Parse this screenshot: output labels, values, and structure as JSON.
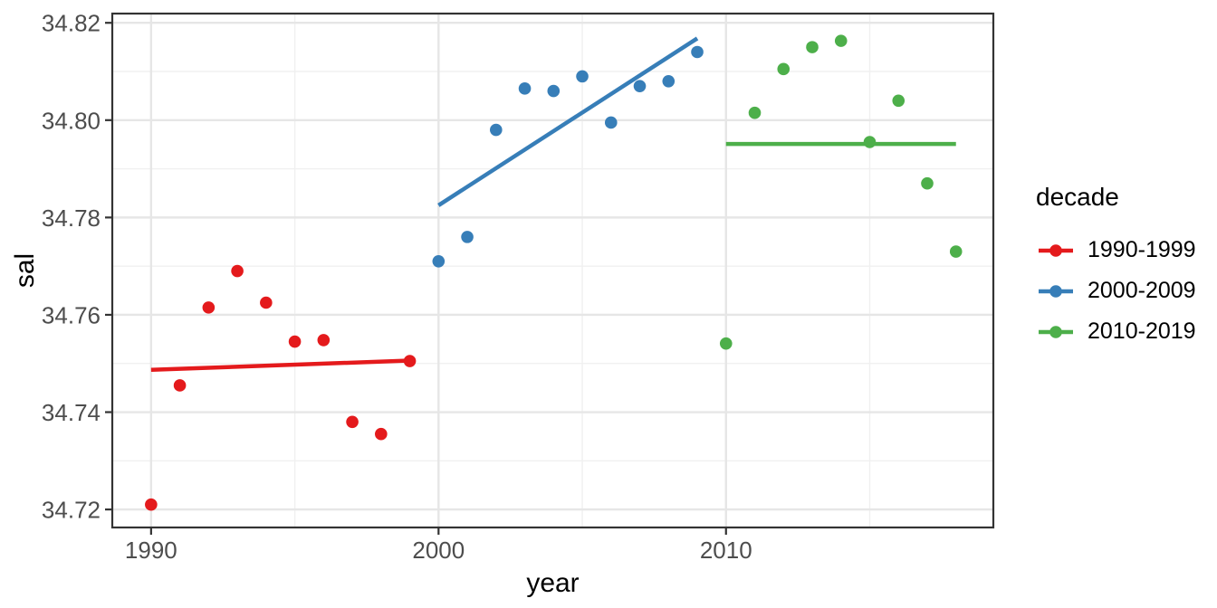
{
  "chart_data": {
    "type": "scatter",
    "title": "",
    "xlabel": "year",
    "ylabel": "sal",
    "xlim": [
      1988.65,
      2019.3
    ],
    "ylim": [
      34.7163,
      34.8219
    ],
    "x_ticks": [
      {
        "value": 1990,
        "label": "1990"
      },
      {
        "value": 2000,
        "label": "2000"
      },
      {
        "value": 2010,
        "label": "2010"
      }
    ],
    "x_minor_ticks": [
      1995,
      2005,
      2015
    ],
    "y_ticks": [
      {
        "value": 34.72,
        "label": "34.72"
      },
      {
        "value": 34.74,
        "label": "34.74"
      },
      {
        "value": 34.76,
        "label": "34.76"
      },
      {
        "value": 34.78,
        "label": "34.78"
      },
      {
        "value": 34.8,
        "label": "34.80"
      },
      {
        "value": 34.82,
        "label": "34.82"
      }
    ],
    "y_minor_ticks": [
      34.73,
      34.75,
      34.77,
      34.79,
      34.81
    ],
    "grid": true,
    "legend": {
      "title": "decade",
      "position": "right"
    },
    "series": [
      {
        "name": "1990-1999",
        "color": "#e41a1c",
        "x": [
          1990,
          1991,
          1992,
          1993,
          1994,
          1995,
          1996,
          1997,
          1998,
          1999
        ],
        "y": [
          34.721,
          34.7455,
          34.7615,
          34.769,
          34.7625,
          34.7545,
          34.7548,
          34.738,
          34.7355,
          34.7505
        ],
        "trend": {
          "x": [
            1990,
            1999
          ],
          "y": [
            34.7487,
            34.7506
          ]
        }
      },
      {
        "name": "2000-2009",
        "color": "#377eb8",
        "x": [
          2000,
          2001,
          2002,
          2003,
          2004,
          2005,
          2006,
          2007,
          2008,
          2009
        ],
        "y": [
          34.771,
          34.776,
          34.798,
          34.8065,
          34.806,
          34.809,
          34.7995,
          34.807,
          34.808,
          34.814
        ],
        "trend": {
          "x": [
            2000,
            2009
          ],
          "y": [
            34.7825,
            34.8168
          ]
        }
      },
      {
        "name": "2010-2019",
        "color": "#4daf4a",
        "x": [
          2010,
          2011,
          2012,
          2013,
          2014,
          2015,
          2016,
          2017,
          2018
        ],
        "y": [
          34.7541,
          34.8015,
          34.8105,
          34.815,
          34.8163,
          34.7955,
          34.804,
          34.787,
          34.773
        ],
        "trend": {
          "x": [
            2010,
            2018
          ],
          "y": [
            34.7951,
            34.7951
          ]
        }
      }
    ],
    "theme": {
      "background": "#ffffff",
      "panel_background": "#ffffff",
      "panel_border_color": "#333333",
      "grid_major_color": "#e6e6e6",
      "grid_minor_color": "#f0f0f0",
      "tick_color": "#333333",
      "axis_text_color": "#4d4d4d",
      "axis_title_color": "#000000"
    }
  }
}
